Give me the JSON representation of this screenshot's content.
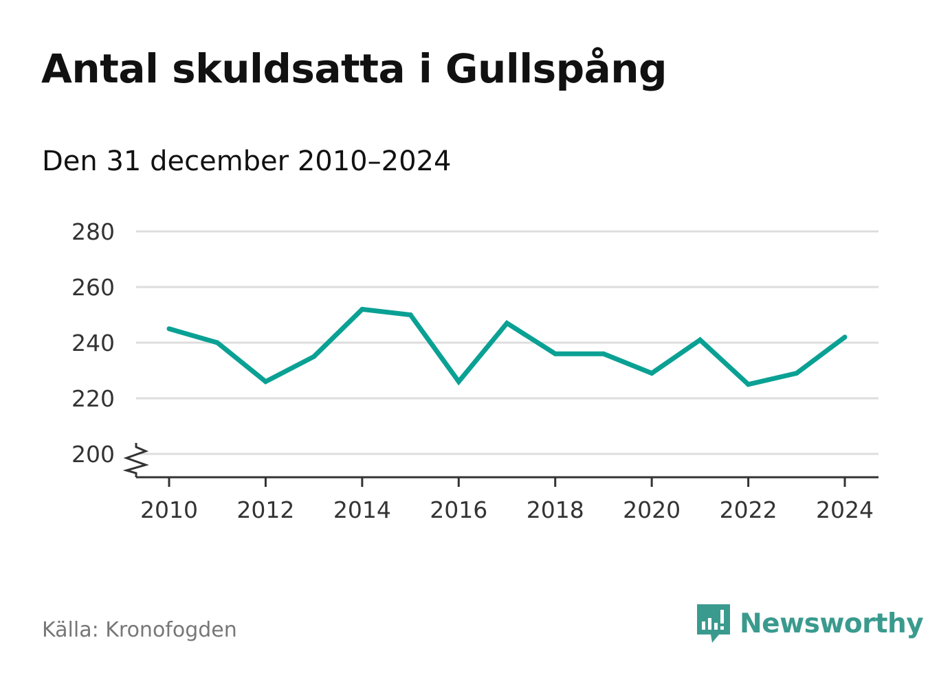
{
  "header": {
    "title": "Antal skuldsatta i Gullspång",
    "subtitle": "Den 31 december 2010–2024"
  },
  "footer": {
    "source": "Källa: Kronofogden",
    "brand": "Newsworthy"
  },
  "colors": {
    "line": "#0aa194",
    "grid": "#dddddd",
    "axis": "#333333",
    "brand": "#3a9a8e"
  },
  "chart_data": {
    "type": "line",
    "title": "Antal skuldsatta i Gullspång",
    "subtitle": "Den 31 december 2010–2024",
    "xlabel": "",
    "ylabel": "",
    "x": [
      2010,
      2011,
      2012,
      2013,
      2014,
      2015,
      2016,
      2017,
      2018,
      2019,
      2020,
      2021,
      2022,
      2023,
      2024
    ],
    "values": [
      245,
      240,
      226,
      235,
      252,
      250,
      226,
      247,
      236,
      236,
      229,
      241,
      225,
      229,
      242
    ],
    "ylim": [
      200,
      280
    ],
    "yticks": [
      "200",
      "220",
      "240",
      "260",
      "280"
    ],
    "xticks": [
      "2010",
      "2012",
      "2014",
      "2016",
      "2018",
      "2020",
      "2022",
      "2024"
    ],
    "grid": true,
    "axis_break": true
  }
}
